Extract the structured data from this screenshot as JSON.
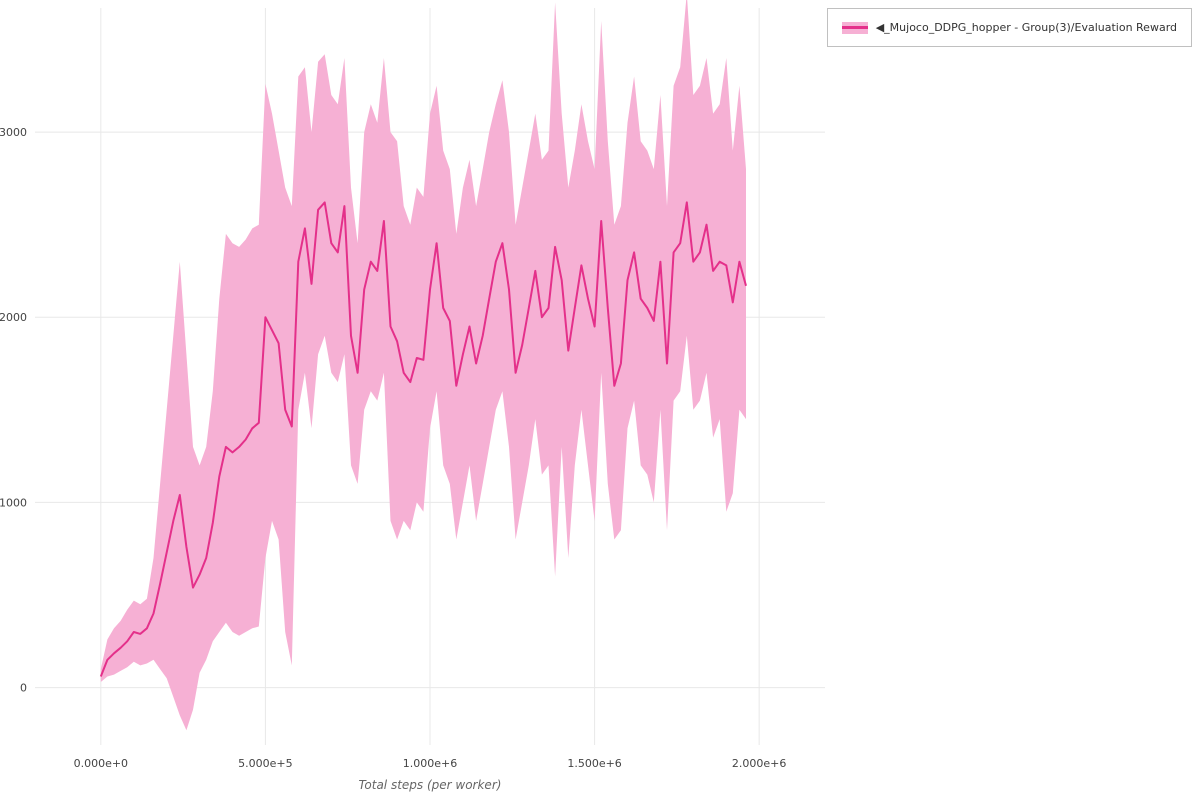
{
  "colors": {
    "line": "#e4308a",
    "band": "#f6b0d4",
    "grid": "#e8e8e8",
    "tick_text": "#444444",
    "axis_label_text": "#666666",
    "legend_border": "#c0c0c0",
    "background": "#ffffff"
  },
  "legend": {
    "items": [
      {
        "label": "◀_Mujoco_DDPG_hopper - Group(3)/Evaluation Reward"
      }
    ]
  },
  "chart_data": {
    "type": "line",
    "title": "",
    "xlabel": "Total steps (per worker)",
    "ylabel": "",
    "grid": true,
    "legend_position": "top-right",
    "xlim": [
      -200000,
      2200000
    ],
    "ylim": [
      -310,
      3670
    ],
    "x_ticks": [
      {
        "value": 0,
        "label": "0.000e+0"
      },
      {
        "value": 500000,
        "label": "5.000e+5"
      },
      {
        "value": 1000000,
        "label": "1.000e+6"
      },
      {
        "value": 1500000,
        "label": "1.500e+6"
      },
      {
        "value": 2000000,
        "label": "2.000e+6"
      }
    ],
    "y_ticks": [
      {
        "value": 0,
        "label": "0"
      },
      {
        "value": 1000,
        "label": "1000"
      },
      {
        "value": 2000,
        "label": "2000"
      },
      {
        "value": 3000,
        "label": "3000"
      }
    ],
    "series": [
      {
        "name": "◀_Mujoco_DDPG_hopper - Group(3)/Evaluation Reward",
        "color": "#e4308a",
        "band_color": "#f6b0d4",
        "x_start": 0,
        "x_step": 20000,
        "mean": [
          60,
          150,
          185,
          215,
          250,
          300,
          290,
          320,
          400,
          560,
          730,
          900,
          1040,
          760,
          540,
          610,
          700,
          890,
          1140,
          1300,
          1270,
          1300,
          1340,
          1400,
          1430,
          2000,
          1930,
          1860,
          1500,
          1410,
          2300,
          2480,
          2180,
          2580,
          2620,
          2400,
          2350,
          2600,
          1900,
          1700,
          2150,
          2300,
          2250,
          2520,
          1950,
          1870,
          1700,
          1650,
          1780,
          1770,
          2150,
          2400,
          2050,
          1980,
          1630,
          1800,
          1950,
          1750,
          1900,
          2100,
          2300,
          2400,
          2150,
          1700,
          1850,
          2050,
          2250,
          2000,
          2050,
          2380,
          2200,
          1820,
          2050,
          2280,
          2100,
          1950,
          2520,
          2050,
          1630,
          1750,
          2200,
          2350,
          2100,
          2050,
          1980,
          2300,
          1750,
          2350,
          2400,
          2620,
          2300,
          2350,
          2500,
          2250,
          2300,
          2280,
          2080,
          2300,
          2170
        ],
        "lower": [
          30,
          60,
          70,
          90,
          110,
          140,
          120,
          130,
          150,
          100,
          50,
          -50,
          -150,
          -230,
          -120,
          80,
          150,
          250,
          300,
          350,
          300,
          280,
          300,
          320,
          330,
          700,
          900,
          800,
          300,
          120,
          1500,
          1700,
          1400,
          1800,
          1900,
          1700,
          1650,
          1800,
          1200,
          1100,
          1500,
          1600,
          1550,
          1700,
          900,
          800,
          900,
          850,
          1000,
          950,
          1400,
          1600,
          1200,
          1100,
          800,
          1000,
          1200,
          900,
          1100,
          1300,
          1500,
          1600,
          1300,
          800,
          1000,
          1200,
          1450,
          1150,
          1200,
          600,
          1300,
          700,
          1200,
          1500,
          1200,
          900,
          1700,
          1100,
          800,
          850,
          1400,
          1550,
          1200,
          1150,
          1000,
          1500,
          850,
          1550,
          1600,
          1900,
          1500,
          1550,
          1700,
          1350,
          1450,
          950,
          1050,
          1500,
          1450
        ],
        "upper": [
          100,
          260,
          320,
          360,
          420,
          470,
          450,
          480,
          700,
          1100,
          1500,
          1900,
          2300,
          1800,
          1300,
          1200,
          1300,
          1600,
          2100,
          2450,
          2400,
          2380,
          2420,
          2480,
          2500,
          3260,
          3100,
          2900,
          2700,
          2600,
          3300,
          3350,
          3000,
          3380,
          3420,
          3200,
          3150,
          3400,
          2700,
          2400,
          3000,
          3150,
          3050,
          3400,
          3000,
          2950,
          2600,
          2500,
          2700,
          2650,
          3100,
          3250,
          2900,
          2800,
          2450,
          2700,
          2850,
          2600,
          2800,
          3000,
          3150,
          3280,
          3000,
          2500,
          2700,
          2900,
          3100,
          2850,
          2900,
          3700,
          3100,
          2700,
          2900,
          3150,
          2950,
          2800,
          3600,
          2950,
          2500,
          2600,
          3050,
          3300,
          2950,
          2900,
          2800,
          3200,
          2600,
          3250,
          3350,
          3750,
          3200,
          3250,
          3400,
          3100,
          3150,
          3400,
          2900,
          3250,
          2800
        ]
      }
    ]
  }
}
